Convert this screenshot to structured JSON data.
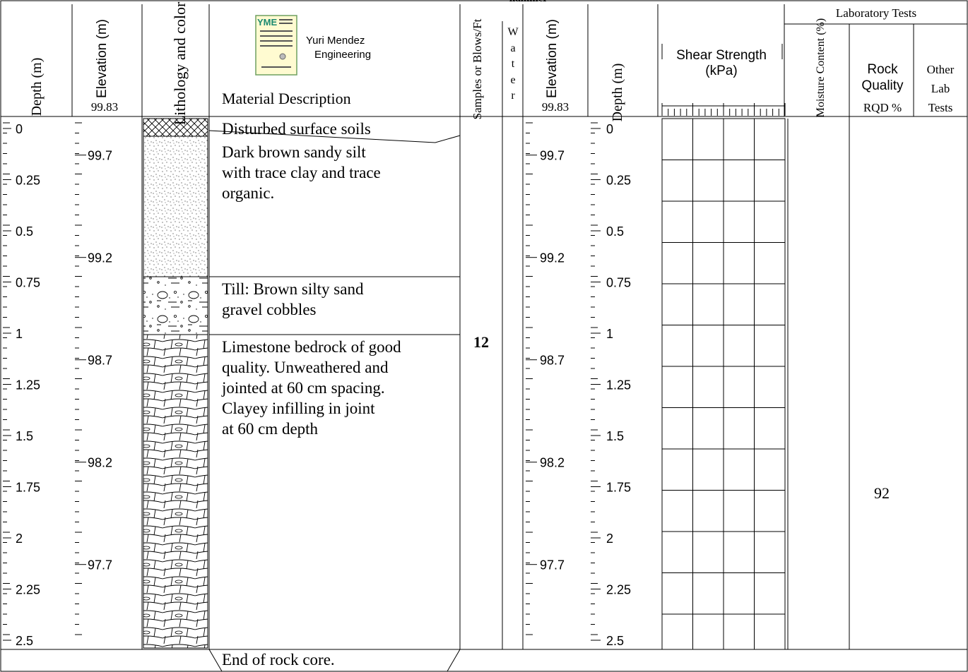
{
  "top_cutoff_text": "hammer",
  "headers": {
    "depth": "Depth (m)",
    "elevation": "Elevation (m)",
    "ground_elevation": "99.83",
    "lithology": "Lithology and color",
    "logo_badge": "YME",
    "company_line1": "Yuri Mendez",
    "company_line2": "Engineering",
    "material_description": "Material Description",
    "samples": "Samples or Blows/Ft",
    "water": [
      "W",
      "a",
      "t",
      "e",
      "r"
    ],
    "shear_line1": "Shear Strength",
    "shear_line2": "(kPa)",
    "lab_tests": "Laboratory Tests",
    "moisture": "Moisture Content (%)",
    "rqd_line1": "Rock",
    "rqd_line2": "Quality",
    "rqd_line3": "RQD %",
    "other_line1": "Other",
    "other_line2": "Lab",
    "other_line3": "Tests"
  },
  "depth_ticks": [
    "0",
    "0.25",
    "0.5",
    "0.75",
    "1",
    "1.25",
    "1.5",
    "1.75",
    "2",
    "2.25",
    "2.5"
  ],
  "elevation_ticks": [
    "99.7",
    "99.2",
    "98.7",
    "98.2",
    "97.7"
  ],
  "layers": [
    {
      "name": "fill",
      "description": "Disturbed surface soils"
    },
    {
      "name": "sandy-silt",
      "description": "Dark brown sandy silt with trace clay and trace organic."
    },
    {
      "name": "till",
      "description": "Till: Brown silty sand gravel cobbles"
    },
    {
      "name": "limestone",
      "description": "Limestone bedrock of good quality. Unweathered and jointed at 60 cm spacing. Clayey infilling in joint at 60 cm depth"
    }
  ],
  "sample_blows": "12",
  "rqd_value": "92",
  "end_note": "End of rock core."
}
